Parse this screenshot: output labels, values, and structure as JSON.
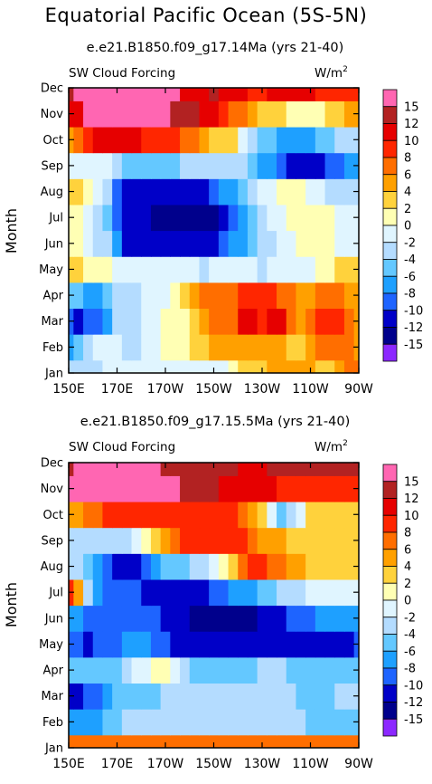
{
  "title": "Equatorial Pacific Ocean (5S-5N)",
  "colorbar": {
    "labels": [
      "15",
      "12",
      "10",
      "8",
      "6",
      "4",
      "2",
      "0",
      "-2",
      "-4",
      "-6",
      "-8",
      "-10",
      "-12",
      "-15"
    ],
    "colors": [
      "#ff66b2",
      "#b22222",
      "#e60000",
      "#ff2600",
      "#ff6e00",
      "#ffa000",
      "#ffd23c",
      "#ffffb4",
      "#e0f5ff",
      "#b4dcff",
      "#64c8ff",
      "#1ea0ff",
      "#1e64ff",
      "#0000c8",
      "#00008c",
      "#8c28ff"
    ]
  },
  "chart_data": [
    {
      "type": "heatmap",
      "title": "e.e21.B1850.f09_g17.14Ma (yrs 21-40)",
      "left_label": "SW Cloud Forcing",
      "units": "W/m",
      "units_sup": "2",
      "ylabel": "Month",
      "x_ticks": [
        "150E",
        "170E",
        "170W",
        "150W",
        "130W",
        "110W",
        "90W"
      ],
      "y_ticks": [
        "Jan",
        "Feb",
        "Mar",
        "Apr",
        "May",
        "Jun",
        "Jul",
        "Aug",
        "Sep",
        "Oct",
        "Nov",
        "Dec"
      ],
      "grid": [
        [
          -4,
          -4,
          -4,
          -4,
          -2,
          -2,
          -2,
          -2,
          -2,
          -2,
          -2,
          -2,
          -2,
          -2,
          -2,
          -2,
          -2,
          0,
          2,
          2,
          2,
          4,
          4,
          4,
          4,
          4,
          2,
          2,
          4,
          6,
          6
        ],
        [
          -8,
          -6,
          -4,
          -2,
          -2,
          -2,
          -4,
          -4,
          -2,
          -2,
          0,
          0,
          0,
          2,
          2,
          4,
          4,
          4,
          4,
          4,
          4,
          4,
          4,
          2,
          2,
          4,
          6,
          6,
          6,
          6,
          4
        ],
        [
          -10,
          -12,
          -10,
          -10,
          -8,
          -4,
          -4,
          -4,
          -2,
          -2,
          0,
          0,
          0,
          2,
          4,
          6,
          6,
          6,
          10,
          10,
          8,
          10,
          10,
          6,
          4,
          6,
          8,
          8,
          8,
          6,
          4
        ],
        [
          -6,
          -6,
          -8,
          -8,
          -6,
          -4,
          -4,
          -4,
          -2,
          -2,
          -2,
          0,
          2,
          4,
          6,
          6,
          6,
          6,
          8,
          8,
          8,
          8,
          6,
          6,
          4,
          4,
          6,
          6,
          6,
          4,
          4
        ],
        [
          2,
          2,
          0,
          0,
          0,
          -2,
          -2,
          -2,
          -2,
          -2,
          -2,
          -2,
          -2,
          -2,
          -4,
          -2,
          -2,
          -2,
          -2,
          -2,
          -4,
          -2,
          -2,
          -2,
          -2,
          -2,
          0,
          0,
          2,
          2,
          2
        ],
        [
          0,
          0,
          -2,
          -4,
          -4,
          -8,
          -12,
          -12,
          -12,
          -12,
          -12,
          -12,
          -12,
          -12,
          -12,
          -12,
          -10,
          -8,
          -8,
          -6,
          -4,
          -4,
          -2,
          -2,
          0,
          0,
          0,
          0,
          -2,
          -2,
          -2
        ],
        [
          0,
          0,
          -2,
          -4,
          -6,
          -10,
          -12,
          -12,
          -12,
          -15,
          -15,
          -15,
          -15,
          -15,
          -15,
          -15,
          -12,
          -10,
          -8,
          -6,
          -4,
          -2,
          -2,
          0,
          0,
          0,
          0,
          0,
          -2,
          -2,
          -2
        ],
        [
          2,
          2,
          0,
          -2,
          -4,
          -10,
          -12,
          -12,
          -12,
          -12,
          -12,
          -12,
          -12,
          -12,
          -12,
          -10,
          -8,
          -8,
          -6,
          -4,
          -2,
          -2,
          0,
          0,
          0,
          -2,
          -2,
          -4,
          -4,
          -4,
          -4
        ],
        [
          -2,
          -2,
          -2,
          -2,
          -2,
          -4,
          -6,
          -6,
          -6,
          -6,
          -6,
          -6,
          -4,
          -4,
          -4,
          -4,
          -4,
          -4,
          -4,
          -6,
          -8,
          -8,
          -10,
          -12,
          -12,
          -12,
          -12,
          -10,
          -10,
          -8,
          -8
        ],
        [
          4,
          6,
          8,
          10,
          10,
          10,
          10,
          10,
          8,
          8,
          8,
          8,
          6,
          6,
          4,
          2,
          2,
          2,
          -2,
          -4,
          -6,
          -6,
          -8,
          -8,
          -8,
          -8,
          -6,
          -6,
          -4,
          -4,
          -4
        ],
        [
          10,
          10,
          15,
          15,
          15,
          15,
          15,
          15,
          15,
          15,
          15,
          12,
          12,
          12,
          10,
          10,
          8,
          6,
          6,
          4,
          2,
          2,
          2,
          0,
          0,
          0,
          0,
          2,
          2,
          4,
          4
        ],
        [
          12,
          15,
          15,
          15,
          15,
          15,
          15,
          15,
          15,
          15,
          15,
          15,
          10,
          10,
          10,
          12,
          10,
          10,
          10,
          8,
          8,
          10,
          10,
          10,
          10,
          10,
          8,
          8,
          8,
          8,
          8
        ]
      ]
    },
    {
      "type": "heatmap",
      "title": "e.e21.B1850.f09_g17.15.5Ma (yrs 21-40)",
      "left_label": "SW Cloud Forcing",
      "units": "W/m",
      "units_sup": "2",
      "ylabel": "Month",
      "x_ticks": [
        "150E",
        "170E",
        "170W",
        "150W",
        "130W",
        "110W",
        "90W"
      ],
      "y_ticks": [
        "Jan",
        "Feb",
        "Mar",
        "Apr",
        "May",
        "Jun",
        "Jul",
        "Aug",
        "Sep",
        "Oct",
        "Nov",
        "Dec"
      ],
      "grid": [
        [
          6,
          6,
          6,
          6,
          6,
          6,
          6,
          6,
          6,
          6,
          6,
          6,
          6,
          6,
          6,
          6,
          6,
          6,
          6,
          6,
          6,
          6,
          6,
          6,
          6,
          6,
          6,
          6,
          6,
          6,
          6
        ],
        [
          -8,
          -8,
          -8,
          -8,
          -6,
          -6,
          -4,
          -4,
          -4,
          -4,
          -4,
          -4,
          -4,
          -4,
          -4,
          -4,
          -4,
          -4,
          -4,
          -4,
          -4,
          -4,
          -4,
          -4,
          -4,
          -6,
          -6,
          -6,
          -6,
          -6,
          -6
        ],
        [
          -12,
          -12,
          -10,
          -10,
          -8,
          -6,
          -6,
          -6,
          -6,
          -6,
          -4,
          -4,
          -4,
          -4,
          -4,
          -4,
          -4,
          -4,
          -4,
          -4,
          -4,
          -4,
          -4,
          -4,
          -6,
          -6,
          -6,
          -6,
          -4,
          -4,
          -4
        ],
        [
          -6,
          -6,
          -6,
          -6,
          -6,
          -6,
          -4,
          -2,
          -2,
          0,
          0,
          -2,
          -4,
          -6,
          -6,
          -6,
          -6,
          -6,
          -6,
          -6,
          -4,
          -4,
          -4,
          -6,
          -6,
          -6,
          -6,
          -6,
          -6,
          -6,
          -6
        ],
        [
          -10,
          -10,
          -12,
          -10,
          -10,
          -10,
          -8,
          -8,
          -8,
          -10,
          -10,
          -12,
          -12,
          -12,
          -12,
          -12,
          -12,
          -12,
          -12,
          -12,
          -12,
          -12,
          -12,
          -12,
          -12,
          -12,
          -12,
          -12,
          -12,
          -12,
          -10
        ],
        [
          -8,
          -8,
          -10,
          -10,
          -10,
          -10,
          -10,
          -10,
          -10,
          -10,
          -12,
          -12,
          -12,
          -15,
          -15,
          -15,
          -15,
          -15,
          -15,
          -15,
          -12,
          -12,
          -12,
          -10,
          -10,
          -10,
          -8,
          -8,
          -8,
          -8,
          -8
        ],
        [
          8,
          4,
          -4,
          -8,
          -10,
          -10,
          -10,
          -10,
          -12,
          -12,
          -12,
          -12,
          -12,
          -12,
          -12,
          -10,
          -10,
          -8,
          -8,
          -8,
          -6,
          -6,
          -4,
          -4,
          -4,
          -2,
          -2,
          -2,
          -2,
          -2,
          -2
        ],
        [
          -4,
          -4,
          -6,
          -8,
          -10,
          -12,
          -12,
          -12,
          -10,
          -8,
          -6,
          -6,
          -6,
          -4,
          -4,
          -2,
          0,
          2,
          6,
          8,
          8,
          6,
          6,
          4,
          4,
          2,
          2,
          2,
          2,
          2,
          2
        ],
        [
          -4,
          -4,
          -4,
          -4,
          -4,
          -4,
          -4,
          -2,
          0,
          2,
          4,
          6,
          8,
          8,
          8,
          8,
          8,
          8,
          8,
          6,
          4,
          4,
          4,
          2,
          2,
          2,
          2,
          2,
          2,
          2,
          2
        ],
        [
          4,
          4,
          6,
          6,
          8,
          8,
          8,
          8,
          8,
          8,
          8,
          8,
          8,
          8,
          8,
          8,
          8,
          8,
          6,
          4,
          2,
          -2,
          -6,
          -4,
          -2,
          2,
          2,
          2,
          2,
          2,
          2
        ],
        [
          15,
          15,
          15,
          15,
          15,
          15,
          15,
          15,
          15,
          15,
          15,
          15,
          12,
          12,
          12,
          12,
          10,
          10,
          10,
          10,
          10,
          10,
          8,
          8,
          8,
          8,
          8,
          8,
          8,
          8,
          8
        ],
        [
          12,
          15,
          15,
          15,
          15,
          15,
          15,
          15,
          15,
          15,
          12,
          12,
          12,
          12,
          12,
          12,
          12,
          12,
          10,
          10,
          10,
          12,
          12,
          12,
          12,
          12,
          12,
          12,
          12,
          12,
          12
        ]
      ]
    }
  ]
}
